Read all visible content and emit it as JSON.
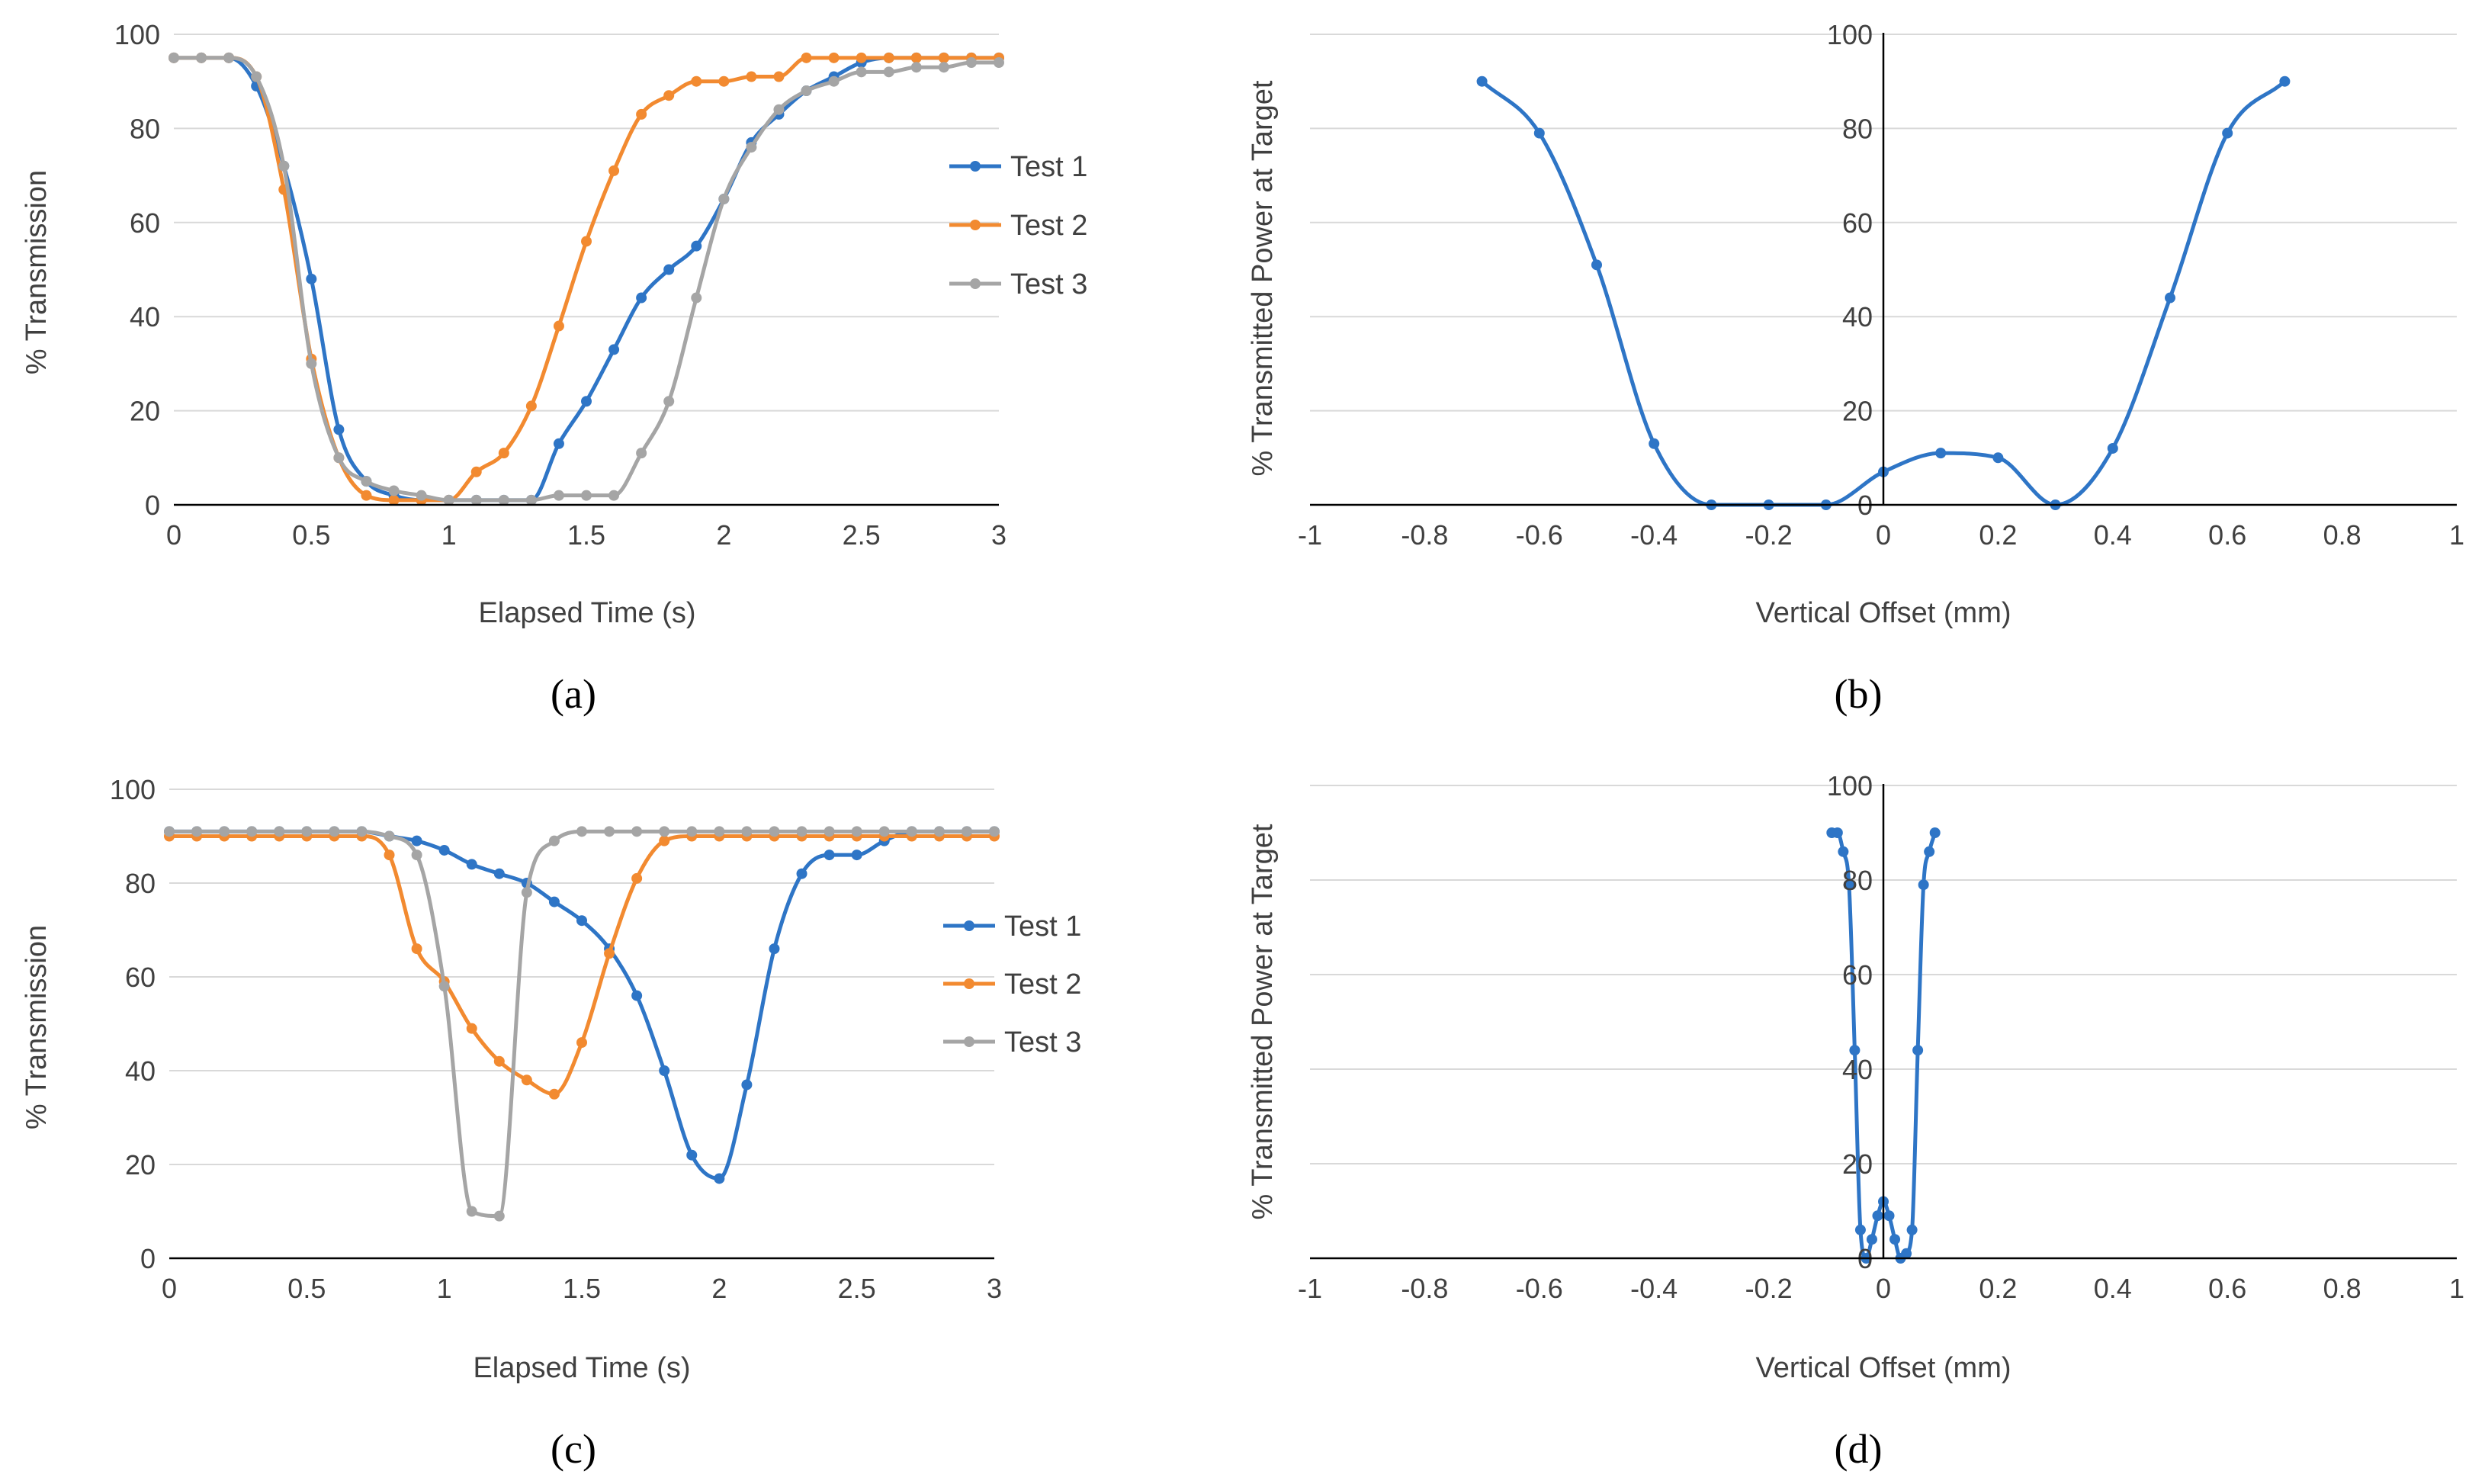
{
  "colors": {
    "test1": "#2e75c6",
    "test2": "#f28a30",
    "test3": "#a5a5a5",
    "grid": "#d9d9d9"
  },
  "chart_data": [
    {
      "id": "a",
      "type": "line",
      "caption": "(a)",
      "xlabel": "Elapsed Time (s)",
      "ylabel": "% Transmission",
      "xlim": [
        0,
        3
      ],
      "ylim": [
        0,
        100
      ],
      "xticks": [
        "0",
        "0.5",
        "1",
        "1.5",
        "2",
        "2.5",
        "3"
      ],
      "yticks": [
        "0",
        "20",
        "40",
        "60",
        "80",
        "100"
      ],
      "legend": "right",
      "series": [
        {
          "name": "Test 1",
          "color": "test1",
          "x": [
            0,
            0.1,
            0.2,
            0.3,
            0.4,
            0.5,
            0.6,
            0.7,
            0.8,
            0.9,
            1.0,
            1.1,
            1.2,
            1.3,
            1.4,
            1.5,
            1.6,
            1.7,
            1.8,
            1.9,
            2.0,
            2.1,
            2.2,
            2.3,
            2.4,
            2.5,
            2.6,
            2.7,
            2.8,
            2.9,
            3.0
          ],
          "y": [
            95,
            95,
            95,
            89,
            72,
            48,
            16,
            5,
            2,
            1,
            1,
            1,
            1,
            1,
            13,
            22,
            33,
            44,
            50,
            55,
            65,
            77,
            83,
            88,
            91,
            94,
            95,
            95,
            95,
            95,
            95
          ]
        },
        {
          "name": "Test 2",
          "color": "test2",
          "x": [
            0,
            0.1,
            0.2,
            0.3,
            0.4,
            0.5,
            0.6,
            0.7,
            0.8,
            0.9,
            1.0,
            1.1,
            1.2,
            1.3,
            1.4,
            1.5,
            1.6,
            1.7,
            1.8,
            1.9,
            2.0,
            2.1,
            2.2,
            2.3,
            2.4,
            2.5,
            2.6,
            2.7,
            2.8,
            2.9,
            3.0
          ],
          "y": [
            95,
            95,
            95,
            91,
            67,
            31,
            10,
            2,
            1,
            1,
            1,
            7,
            11,
            21,
            38,
            56,
            71,
            83,
            87,
            90,
            90,
            91,
            91,
            95,
            95,
            95,
            95,
            95,
            95,
            95,
            95
          ]
        },
        {
          "name": "Test 3",
          "color": "test3",
          "x": [
            0,
            0.1,
            0.2,
            0.3,
            0.4,
            0.5,
            0.6,
            0.7,
            0.8,
            0.9,
            1.0,
            1.1,
            1.2,
            1.3,
            1.4,
            1.5,
            1.6,
            1.7,
            1.8,
            1.9,
            2.0,
            2.1,
            2.2,
            2.3,
            2.4,
            2.5,
            2.6,
            2.7,
            2.8,
            2.9,
            3.0
          ],
          "y": [
            95,
            95,
            95,
            91,
            72,
            30,
            10,
            5,
            3,
            2,
            1,
            1,
            1,
            1,
            2,
            2,
            2,
            11,
            22,
            44,
            65,
            76,
            84,
            88,
            90,
            92,
            92,
            93,
            93,
            94,
            94
          ]
        }
      ]
    },
    {
      "id": "b",
      "type": "line",
      "caption": "(b)",
      "xlabel": "Vertical Offset (mm)",
      "ylabel": "% Transmitted Power at Target",
      "xlim": [
        -1,
        1
      ],
      "ylim": [
        0,
        100
      ],
      "xticks": [
        "-1",
        "-0.8",
        "-0.6",
        "-0.4",
        "-0.2",
        "0",
        "0.2",
        "0.4",
        "0.6",
        "0.8",
        "1"
      ],
      "yticks": [
        "0",
        "20",
        "40",
        "60",
        "80",
        "100"
      ],
      "legend": "none",
      "series": [
        {
          "name": "Transmitted Power",
          "color": "test1",
          "x": [
            -0.7,
            -0.6,
            -0.5,
            -0.4,
            -0.3,
            -0.2,
            -0.1,
            0,
            0.1,
            0.2,
            0.3,
            0.4,
            0.5,
            0.6,
            0.7
          ],
          "y": [
            90,
            79,
            51,
            13,
            0,
            0,
            0,
            7,
            11,
            10,
            0,
            12,
            44,
            79,
            90
          ]
        }
      ]
    },
    {
      "id": "c",
      "type": "line",
      "caption": "(c)",
      "xlabel": "Elapsed Time (s)",
      "ylabel": "% Transmission",
      "xlim": [
        0,
        3
      ],
      "ylim": [
        0,
        100
      ],
      "xticks": [
        "0",
        "0.5",
        "1",
        "1.5",
        "2",
        "2.5",
        "3"
      ],
      "yticks": [
        "0",
        "20",
        "40",
        "60",
        "80",
        "100"
      ],
      "legend": "right",
      "series": [
        {
          "name": "Test 1",
          "color": "test1",
          "x": [
            0,
            0.1,
            0.2,
            0.3,
            0.4,
            0.5,
            0.6,
            0.7,
            0.8,
            0.9,
            1.0,
            1.1,
            1.2,
            1.3,
            1.4,
            1.5,
            1.6,
            1.7,
            1.8,
            1.9,
            2.0,
            2.1,
            2.2,
            2.3,
            2.4,
            2.5,
            2.6,
            2.7,
            2.8,
            2.9,
            3.0
          ],
          "y": [
            91,
            91,
            91,
            91,
            91,
            91,
            91,
            91,
            90,
            89,
            87,
            84,
            82,
            80,
            76,
            72,
            66,
            56,
            40,
            22,
            17,
            37,
            66,
            82,
            86,
            86,
            89,
            91,
            91,
            91,
            91
          ]
        },
        {
          "name": "Test 2",
          "color": "test2",
          "x": [
            0,
            0.1,
            0.2,
            0.3,
            0.4,
            0.5,
            0.6,
            0.7,
            0.8,
            0.9,
            1.0,
            1.1,
            1.2,
            1.3,
            1.4,
            1.5,
            1.6,
            1.7,
            1.8,
            1.9,
            2.0,
            2.1,
            2.2,
            2.3,
            2.4,
            2.5,
            2.6,
            2.7,
            2.8,
            2.9,
            3.0
          ],
          "y": [
            90,
            90,
            90,
            90,
            90,
            90,
            90,
            90,
            86,
            66,
            59,
            49,
            42,
            38,
            35,
            46,
            65,
            81,
            89,
            90,
            90,
            90,
            90,
            90,
            90,
            90,
            90,
            90,
            90,
            90,
            90
          ]
        },
        {
          "name": "Test 3",
          "color": "test3",
          "x": [
            0,
            0.1,
            0.2,
            0.3,
            0.4,
            0.5,
            0.6,
            0.7,
            0.8,
            0.9,
            1.0,
            1.1,
            1.2,
            1.3,
            1.4,
            1.5,
            1.6,
            1.7,
            1.8,
            1.9,
            2.0,
            2.1,
            2.2,
            2.3,
            2.4,
            2.5,
            2.6,
            2.7,
            2.8,
            2.9,
            3.0
          ],
          "y": [
            91,
            91,
            91,
            91,
            91,
            91,
            91,
            91,
            90,
            86,
            58,
            10,
            9,
            78,
            89,
            91,
            91,
            91,
            91,
            91,
            91,
            91,
            91,
            91,
            91,
            91,
            91,
            91,
            91,
            91,
            91
          ]
        }
      ]
    },
    {
      "id": "d",
      "type": "line",
      "caption": "(d)",
      "xlabel": "Vertical Offset (mm)",
      "ylabel": "% Transmitted Power at Target",
      "xlim": [
        -1,
        1
      ],
      "ylim": [
        0,
        100
      ],
      "xticks": [
        "-1",
        "-0.8",
        "-0.6",
        "-0.4",
        "-0.2",
        "0",
        "0.2",
        "0.4",
        "0.6",
        "0.8",
        "1"
      ],
      "yticks": [
        "0",
        "20",
        "40",
        "60",
        "80",
        "100"
      ],
      "legend": "none",
      "series": [
        {
          "name": "Transmitted Power",
          "color": "test1",
          "x": [
            -0.09,
            -0.08,
            -0.07,
            -0.06,
            -0.05,
            -0.04,
            -0.03,
            -0.02,
            -0.01,
            0,
            0.01,
            0.02,
            0.03,
            0.04,
            0.05,
            0.06,
            0.07,
            0.08,
            0.09
          ],
          "y": [
            90,
            90,
            86,
            79,
            44,
            6,
            0,
            4,
            9,
            12,
            9,
            4,
            0,
            1,
            6,
            44,
            79,
            86,
            90
          ]
        }
      ]
    }
  ]
}
